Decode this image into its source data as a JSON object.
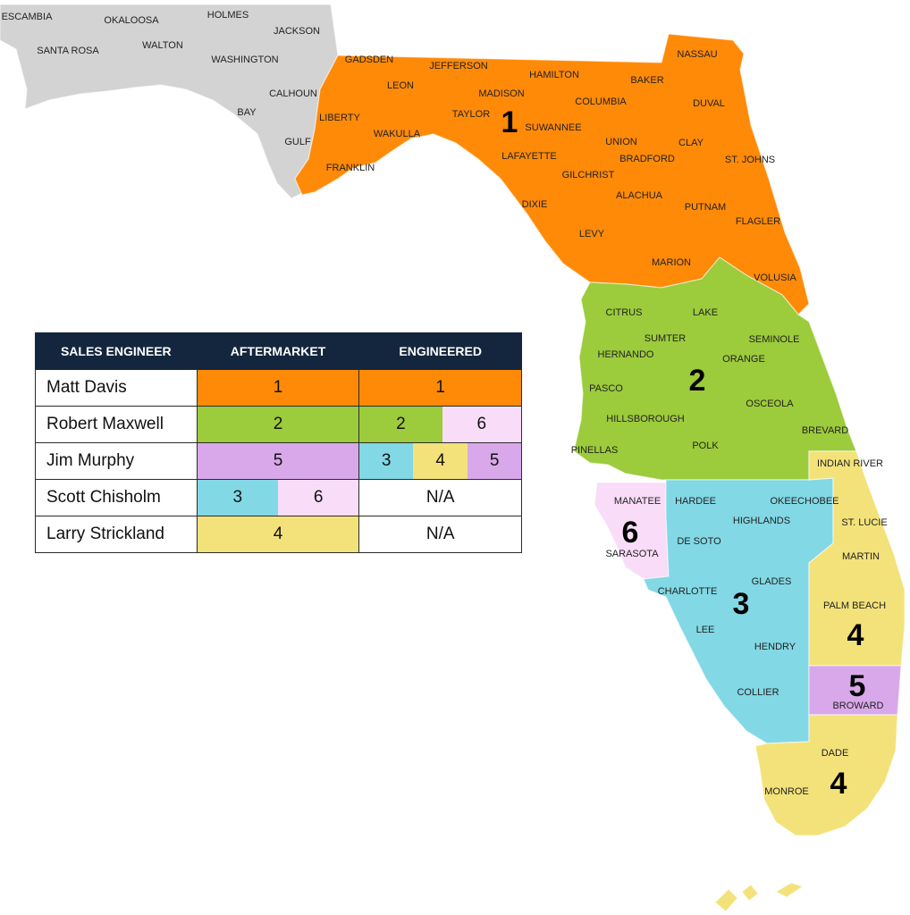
{
  "colors": {
    "zone1": "#ff8a08",
    "zone2": "#9ccb3b",
    "zone3": "#82d8e5",
    "zone4": "#f3e27a",
    "zone5": "#d9a8ea",
    "zone6": "#f8dcf8",
    "other": "#d3d3d3",
    "header": "#13263d"
  },
  "legend": {
    "headers": {
      "engineer": "SALES ENGINEER",
      "aftermarket": "AFTERMARKET",
      "engineered": "ENGINEERED"
    },
    "rows": [
      {
        "name": "Matt Davis",
        "aftermarket": [
          "1"
        ],
        "engineered": [
          "1"
        ]
      },
      {
        "name": "Robert Maxwell",
        "aftermarket": [
          "2"
        ],
        "engineered": [
          "2",
          "6"
        ]
      },
      {
        "name": "Jim Murphy",
        "aftermarket": [
          "5"
        ],
        "engineered": [
          "3",
          "4",
          "5"
        ]
      },
      {
        "name": "Scott Chisholm",
        "aftermarket": [
          "3",
          "6"
        ],
        "engineered": [
          "N/A"
        ]
      },
      {
        "name": "Larry Strickland",
        "aftermarket": [
          "4"
        ],
        "engineered": [
          "N/A"
        ]
      }
    ]
  },
  "zones": {
    "z1": "1",
    "z2": "2",
    "z3": "3",
    "z4_palm": "4",
    "z4_dade": "4",
    "z5": "5",
    "z6": "6"
  },
  "counties": {
    "escambia": "ESCAMBIA",
    "okaloosa": "OKALOOSA",
    "holmes": "HOLMES",
    "jackson": "JACKSON",
    "santa_rosa": "SANTA ROSA",
    "walton": "WALTON",
    "washington": "WASHINGTON",
    "calhoun": "CALHOUN",
    "bay": "BAY",
    "gulf": "GULF",
    "gadsden": "GADSDEN",
    "jefferson": "JEFFERSON",
    "nassau": "NASSAU",
    "hamilton": "HAMILTON",
    "leon": "LEON",
    "madison": "MADISON",
    "baker": "BAKER",
    "columbia": "COLUMBIA",
    "duval": "DUVAL",
    "liberty": "LIBERTY",
    "taylor": "TAYLOR",
    "suwannee": "SUWANNEE",
    "union": "UNION",
    "clay": "CLAY",
    "wakulla": "WAKULLA",
    "bradford": "BRADFORD",
    "st_johns": "ST. JOHNS",
    "lafayette": "LAFAYETTE",
    "franklin": "FRANKLIN",
    "gilchrist": "GILCHRIST",
    "alachua": "ALACHUA",
    "dixie": "DIXIE",
    "putnam": "PUTNAM",
    "flagler": "FLAGLER",
    "levy": "LEVY",
    "marion": "MARION",
    "volusia": "VOLUSIA",
    "citrus": "CITRUS",
    "lake": "LAKE",
    "sumter": "SUMTER",
    "seminole": "SEMINOLE",
    "hernando": "HERNANDO",
    "orange": "ORANGE",
    "pasco": "PASCO",
    "osceola": "OSCEOLA",
    "hillsborough": "HILLSBOROUGH",
    "brevard": "BREVARD",
    "pinellas": "PINELLAS",
    "polk": "POLK",
    "indian_river": "INDIAN RIVER",
    "manatee": "MANATEE",
    "hardee": "HARDEE",
    "okeechobee": "OKEECHOBEE",
    "highlands": "HIGHLANDS",
    "st_lucie": "ST. LUCIE",
    "de_soto": "DE SOTO",
    "sarasota": "SARASOTA",
    "martin": "MARTIN",
    "glades": "GLADES",
    "charlotte": "CHARLOTTE",
    "palm_beach": "PALM BEACH",
    "lee": "LEE",
    "hendry": "HENDRY",
    "collier": "COLLIER",
    "broward": "BROWARD",
    "dade": "DADE",
    "monroe": "MONROE"
  }
}
